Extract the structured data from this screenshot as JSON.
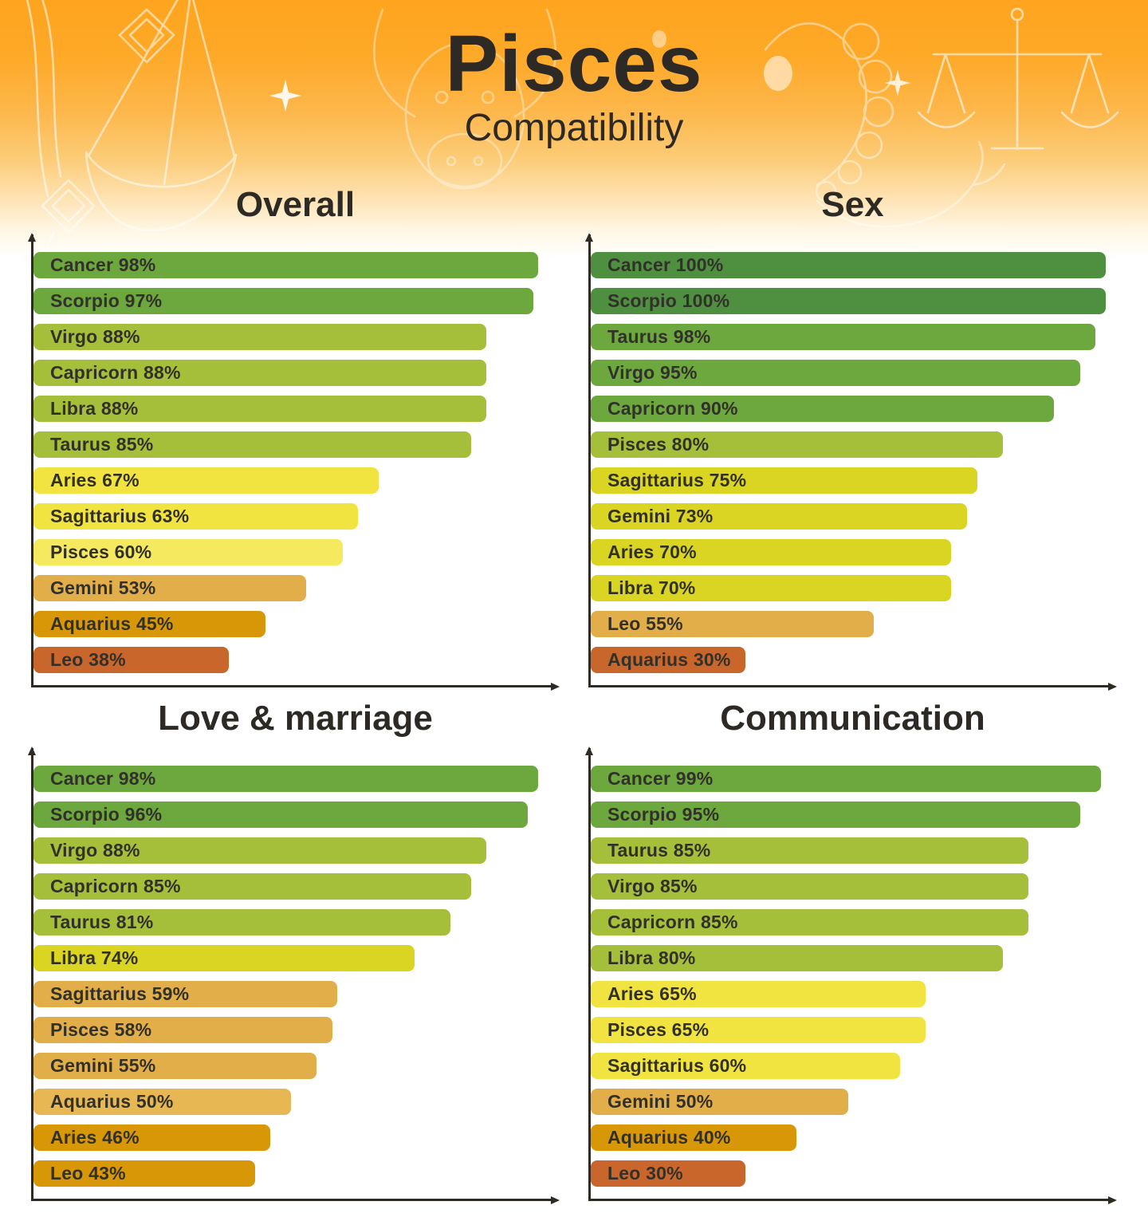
{
  "title": "Pisces",
  "subtitle": "Compatibility",
  "text_color": "#2d2a26",
  "palette": {
    "dark_green": "#4e9040",
    "green": "#6ca83e",
    "yellow_green": "#a6bf3b",
    "chartreuse": "#d9d522",
    "yellow": "#f2e440",
    "light_yellow": "#f5ea5f",
    "tan": "#e2ae49",
    "light_tan": "#e6b753",
    "amber": "#d89707",
    "burnt_orange": "#c8662b",
    "background_top": "#ffa41e",
    "axis": "#2f2a24"
  },
  "decor_icons": [
    "libra-scales-art",
    "balance-scale-art",
    "bull-head-art",
    "scorpion-art",
    "sparkle-icon"
  ],
  "chart_data": [
    {
      "type": "bar",
      "title": "Overall",
      "orientation": "horizontal",
      "xlim": [
        0,
        100
      ],
      "unit": "%",
      "grid": false,
      "categories": [
        "Cancer",
        "Scorpio",
        "Virgo",
        "Capricorn",
        "Libra",
        "Taurus",
        "Aries",
        "Sagittarius",
        "Pisces",
        "Gemini",
        "Aquarius",
        "Leo"
      ],
      "values": [
        98,
        97,
        88,
        88,
        88,
        85,
        67,
        63,
        60,
        53,
        45,
        38
      ],
      "bar_colors": [
        "#6ca83e",
        "#6ca83e",
        "#a6bf3b",
        "#a6bf3b",
        "#a6bf3b",
        "#a6bf3b",
        "#f2e440",
        "#f2e440",
        "#f5ea5f",
        "#e2ae49",
        "#d89707",
        "#c8662b"
      ]
    },
    {
      "type": "bar",
      "title": "Sex",
      "orientation": "horizontal",
      "xlim": [
        0,
        100
      ],
      "unit": "%",
      "grid": false,
      "categories": [
        "Cancer",
        "Scorpio",
        "Taurus",
        "Virgo",
        "Capricorn",
        "Pisces",
        "Sagittarius",
        "Gemini",
        "Aries",
        "Libra",
        "Leo",
        "Aquarius"
      ],
      "values": [
        100,
        100,
        98,
        95,
        90,
        80,
        75,
        73,
        70,
        70,
        55,
        30
      ],
      "bar_colors": [
        "#4e9040",
        "#4e9040",
        "#6ca83e",
        "#6ca83e",
        "#6ca83e",
        "#a6bf3b",
        "#d9d522",
        "#d9d522",
        "#d9d522",
        "#d9d522",
        "#e2ae49",
        "#c8662b"
      ]
    },
    {
      "type": "bar",
      "title": "Love & marriage",
      "orientation": "horizontal",
      "xlim": [
        0,
        100
      ],
      "unit": "%",
      "grid": false,
      "categories": [
        "Cancer",
        "Scorpio",
        "Virgo",
        "Capricorn",
        "Taurus",
        "Libra",
        "Sagittarius",
        "Pisces",
        "Gemini",
        "Aquarius",
        "Aries",
        "Leo"
      ],
      "values": [
        98,
        96,
        88,
        85,
        81,
        74,
        59,
        58,
        55,
        50,
        46,
        43
      ],
      "bar_colors": [
        "#6ca83e",
        "#6ca83e",
        "#a6bf3b",
        "#a6bf3b",
        "#a6bf3b",
        "#d9d522",
        "#e2ae49",
        "#e2ae49",
        "#e2ae49",
        "#e6b753",
        "#d89707",
        "#d89707"
      ]
    },
    {
      "type": "bar",
      "title": "Communication",
      "orientation": "horizontal",
      "xlim": [
        0,
        100
      ],
      "unit": "%",
      "grid": false,
      "categories": [
        "Cancer",
        "Scorpio",
        "Taurus",
        "Virgo",
        "Capricorn",
        "Libra",
        "Aries",
        "Pisces",
        "Sagittarius",
        "Gemini",
        "Aquarius",
        "Leo"
      ],
      "values": [
        99,
        95,
        85,
        85,
        85,
        80,
        65,
        65,
        60,
        50,
        40,
        30
      ],
      "bar_colors": [
        "#6ca83e",
        "#6ca83e",
        "#a6bf3b",
        "#a6bf3b",
        "#a6bf3b",
        "#a6bf3b",
        "#f2e440",
        "#f2e440",
        "#f2e440",
        "#e2ae49",
        "#d89707",
        "#c8662b"
      ]
    }
  ]
}
